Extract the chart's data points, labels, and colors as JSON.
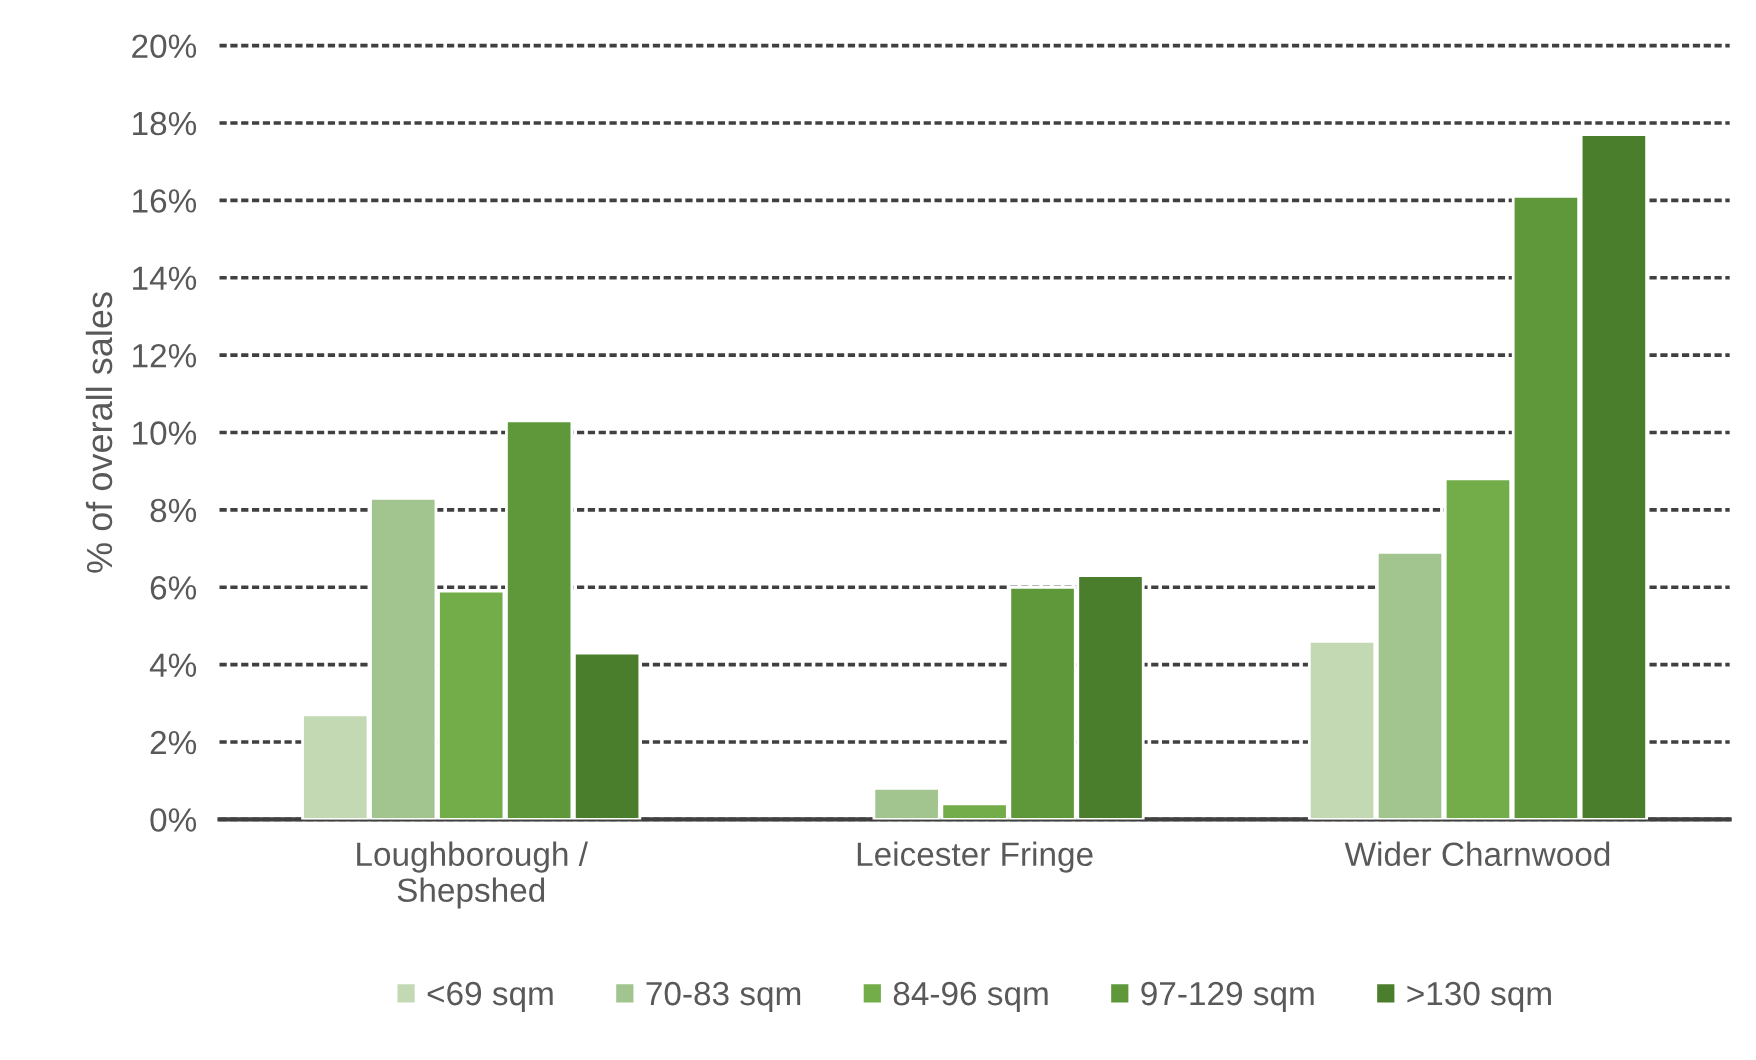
{
  "chart_data": {
    "type": "bar",
    "ylabel": "% of overall sales",
    "categories": [
      "Loughborough /\nShepshed",
      "Leicester Fringe",
      "Wider Charnwood"
    ],
    "series": [
      {
        "name": "<69 sqm",
        "color": "#c3d9b3",
        "values": [
          2.7,
          null,
          4.6
        ]
      },
      {
        "name": "70-83 sqm",
        "color": "#a2c48e",
        "values": [
          8.3,
          0.8,
          6.9
        ]
      },
      {
        "name": "84-96 sqm",
        "color": "#72ad4a",
        "values": [
          5.9,
          0.4,
          8.8
        ]
      },
      {
        "name": "97-129 sqm",
        "color": "#5f983b",
        "values": [
          10.3,
          6.0,
          16.1
        ]
      },
      {
        "name": ">130 sqm",
        "color": "#4a7d2c",
        "values": [
          4.3,
          6.3,
          17.7
        ]
      }
    ],
    "ylim": [
      0,
      20
    ],
    "yticks": [
      {
        "value": 0,
        "label": "0%"
      },
      {
        "value": 2,
        "label": "2%"
      },
      {
        "value": 4,
        "label": "4%"
      },
      {
        "value": 6,
        "label": "6%"
      },
      {
        "value": 8,
        "label": "8%"
      },
      {
        "value": 10,
        "label": "10%"
      },
      {
        "value": 12,
        "label": "12%"
      },
      {
        "value": 14,
        "label": "14%"
      },
      {
        "value": 16,
        "label": "16%"
      },
      {
        "value": 18,
        "label": "18%"
      },
      {
        "value": 20,
        "label": "20%"
      }
    ],
    "grid": "y",
    "legend": "bottom"
  }
}
